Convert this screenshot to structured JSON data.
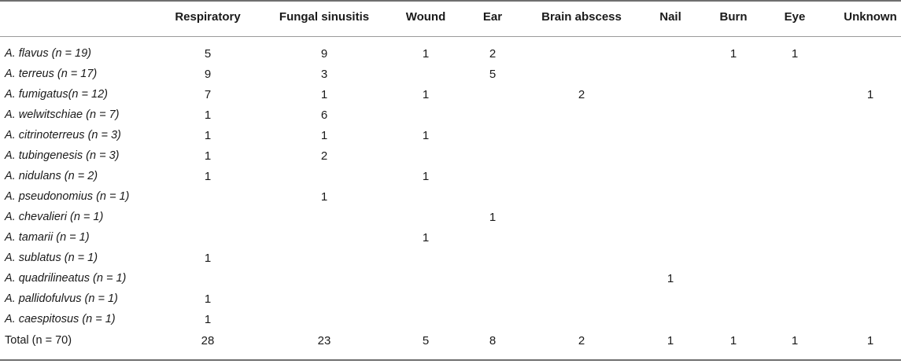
{
  "columns": [
    "Respiratory",
    "Fungal sinusitis",
    "Wound",
    "Ear",
    "Brain abscess",
    "Nail",
    "Burn",
    "Eye",
    "Unknown"
  ],
  "rows": [
    {
      "label": "A. flavus (n = 19)",
      "italic": true,
      "values": [
        "5",
        "9",
        "1",
        "2",
        "",
        "",
        "1",
        "1",
        ""
      ]
    },
    {
      "label": "A. terreus (n = 17)",
      "italic": true,
      "values": [
        "9",
        "3",
        "",
        "5",
        "",
        "",
        "",
        "",
        ""
      ]
    },
    {
      "label": "A. fumigatus(n = 12)",
      "italic": true,
      "values": [
        "7",
        "1",
        "1",
        "",
        "2",
        "",
        "",
        "",
        "1"
      ]
    },
    {
      "label": "A. welwitschiae (n = 7)",
      "italic": true,
      "values": [
        "1",
        "6",
        "",
        "",
        "",
        "",
        "",
        "",
        ""
      ]
    },
    {
      "label": "A. citrinoterreus (n = 3)",
      "italic": true,
      "values": [
        "1",
        "1",
        "1",
        "",
        "",
        "",
        "",
        "",
        ""
      ]
    },
    {
      "label": "A. tubingenesis (n = 3)",
      "italic": true,
      "values": [
        "1",
        "2",
        "",
        "",
        "",
        "",
        "",
        "",
        ""
      ]
    },
    {
      "label": "A. nidulans (n = 2)",
      "italic": true,
      "values": [
        "1",
        "",
        "1",
        "",
        "",
        "",
        "",
        "",
        ""
      ]
    },
    {
      "label": "A. pseudonomius (n = 1)",
      "italic": true,
      "values": [
        "",
        "1",
        "",
        "",
        "",
        "",
        "",
        "",
        ""
      ]
    },
    {
      "label": "A. chevalieri (n = 1)",
      "italic": true,
      "values": [
        "",
        "",
        "",
        "1",
        "",
        "",
        "",
        "",
        ""
      ]
    },
    {
      "label": "A. tamarii (n = 1)",
      "italic": true,
      "values": [
        "",
        "",
        "1",
        "",
        "",
        "",
        "",
        "",
        ""
      ]
    },
    {
      "label": "A. sublatus (n = 1)",
      "italic": true,
      "values": [
        "1",
        "",
        "",
        "",
        "",
        "",
        "",
        "",
        ""
      ]
    },
    {
      "label": "A. quadrilineatus (n = 1)",
      "italic": true,
      "values": [
        "",
        "",
        "",
        "",
        "",
        "1",
        "",
        "",
        ""
      ]
    },
    {
      "label": "A. pallidofulvus (n = 1)",
      "italic": true,
      "values": [
        "1",
        "",
        "",
        "",
        "",
        "",
        "",
        "",
        ""
      ]
    },
    {
      "label": "A. caespitosus (n = 1)",
      "italic": true,
      "values": [
        "1",
        "",
        "",
        "",
        "",
        "",
        "",
        "",
        ""
      ]
    },
    {
      "label": "Total (n = 70)",
      "italic": false,
      "values": [
        "28",
        "23",
        "5",
        "8",
        "2",
        "1",
        "1",
        "1",
        "1"
      ]
    }
  ]
}
